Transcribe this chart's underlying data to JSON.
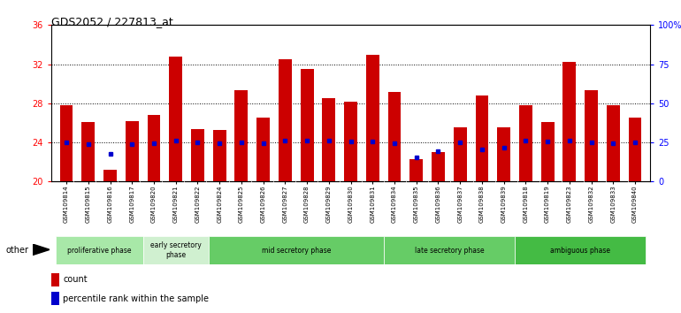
{
  "title": "GDS2052 / 227813_at",
  "samples": [
    "GSM109814",
    "GSM109815",
    "GSM109816",
    "GSM109817",
    "GSM109820",
    "GSM109821",
    "GSM109822",
    "GSM109824",
    "GSM109825",
    "GSM109826",
    "GSM109827",
    "GSM109828",
    "GSM109829",
    "GSM109830",
    "GSM109831",
    "GSM109834",
    "GSM109835",
    "GSM109836",
    "GSM109837",
    "GSM109838",
    "GSM109839",
    "GSM109818",
    "GSM109819",
    "GSM109823",
    "GSM109832",
    "GSM109833",
    "GSM109840"
  ],
  "count_values": [
    27.8,
    26.1,
    21.2,
    26.2,
    26.8,
    32.8,
    25.4,
    25.3,
    29.3,
    26.5,
    32.5,
    31.5,
    28.5,
    28.2,
    33.0,
    29.2,
    22.3,
    23.0,
    25.5,
    28.8,
    25.5,
    27.8,
    26.1,
    32.2,
    29.3,
    27.8,
    26.5
  ],
  "percentile_values": [
    24.0,
    23.8,
    22.8,
    23.8,
    23.9,
    24.2,
    24.0,
    23.9,
    24.0,
    23.9,
    24.2,
    24.2,
    24.2,
    24.1,
    24.1,
    23.9,
    22.5,
    23.1,
    24.0,
    23.3,
    23.5,
    24.2,
    24.1,
    24.2,
    24.0,
    23.9,
    24.0
  ],
  "ylim": [
    20,
    36
  ],
  "yticks_left": [
    20,
    24,
    28,
    32,
    36
  ],
  "right_ytick_vals": [
    0,
    25,
    50,
    75,
    100
  ],
  "right_ytick_labels": [
    "0",
    "25",
    "50",
    "75",
    "100%"
  ],
  "bar_color": "#cc0000",
  "percentile_color": "#0000cc",
  "bar_width": 0.6,
  "phase_defs": [
    {
      "label": "proliferative phase",
      "start": 0,
      "end": 4,
      "color": "#a8e8a8"
    },
    {
      "label": "early secretory\nphase",
      "start": 4,
      "end": 7,
      "color": "#d0f0d0"
    },
    {
      "label": "mid secretory phase",
      "start": 7,
      "end": 15,
      "color": "#66cc66"
    },
    {
      "label": "late secretory phase",
      "start": 15,
      "end": 21,
      "color": "#66cc66"
    },
    {
      "label": "ambiguous phase",
      "start": 21,
      "end": 27,
      "color": "#44bb44"
    }
  ]
}
